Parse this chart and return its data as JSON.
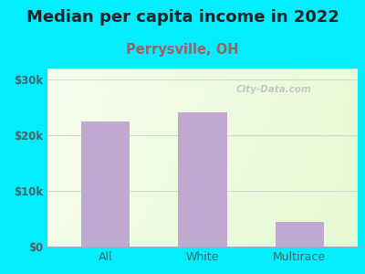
{
  "title": "Median per capita income in 2022",
  "subtitle": "Perrysville, OH",
  "categories": [
    "All",
    "White",
    "Multirace"
  ],
  "values": [
    22500,
    24200,
    4500
  ],
  "bar_color": "#c0a8d0",
  "title_fontsize": 13,
  "title_color": "#222222",
  "subtitle_fontsize": 10.5,
  "subtitle_color": "#a06060",
  "tick_color": "#446666",
  "ylim": [
    0,
    32000
  ],
  "yticks": [
    0,
    10000,
    20000,
    30000
  ],
  "ytick_labels": [
    "$0",
    "$10k",
    "$20k",
    "$30k"
  ],
  "background_outer": "#00eeff",
  "watermark": "City-Data.com",
  "grid_color": "#ccddcc"
}
